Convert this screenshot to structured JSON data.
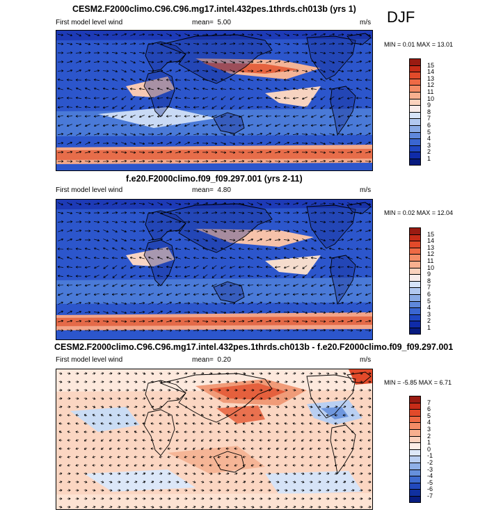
{
  "season": "DJF",
  "panels": [
    {
      "title": "CESM2.F2000climo.C96.C96.mg17.intel.432pes.1thrds.ch013b (yrs 1)",
      "left_label": "First model level wind",
      "mean_label": "mean=",
      "mean_value": "5.00",
      "units": "m/s",
      "min_max": "MIN =  0.01 MAX = 13.01",
      "colorbar_ticks": [
        "15",
        "14",
        "13",
        "12",
        "11",
        "10",
        "9",
        "8",
        "7",
        "6",
        "5",
        "4",
        "3",
        "2",
        "1"
      ],
      "colorbar_colors": [
        "#9a1b12",
        "#c72c18",
        "#e24a2a",
        "#ee6a45",
        "#f48c66",
        "#f8b08f",
        "#fbd2bd",
        "#f8ecea",
        "#d7e4f8",
        "#b2c9f0",
        "#8aabe6",
        "#5f88db",
        "#3a66d1",
        "#2047c2",
        "#0f2ba9",
        "#081b80"
      ]
    },
    {
      "title": "f.e20.F2000climo.f09_f09.297.001 (yrs 2-11)",
      "left_label": "First model level wind",
      "mean_label": "mean=",
      "mean_value": "4.80",
      "units": "m/s",
      "min_max": "MIN =  0.02 MAX = 12.04",
      "colorbar_ticks": [
        "15",
        "14",
        "13",
        "12",
        "11",
        "10",
        "9",
        "8",
        "7",
        "6",
        "5",
        "4",
        "3",
        "2",
        "1"
      ],
      "colorbar_colors": [
        "#9a1b12",
        "#c72c18",
        "#e24a2a",
        "#ee6a45",
        "#f48c66",
        "#f8b08f",
        "#fbd2bd",
        "#f8ecea",
        "#d7e4f8",
        "#b2c9f0",
        "#8aabe6",
        "#5f88db",
        "#3a66d1",
        "#2047c2",
        "#0f2ba9",
        "#081b80"
      ]
    },
    {
      "title": "CESM2.F2000climo.C96.C96.mg17.intel.432pes.1thrds.ch013b - f.e20.F2000climo.f09_f09.297.001",
      "left_label": "First model level wind",
      "mean_label": "mean=",
      "mean_value": "0.20",
      "units": "m/s",
      "min_max": "MIN = -5.85 MAX =  6.71",
      "colorbar_ticks": [
        "7",
        "6",
        "5",
        "4",
        "3",
        "2",
        "1",
        "0",
        "-1",
        "-2",
        "-3",
        "-4",
        "-5",
        "-6",
        "-7"
      ],
      "colorbar_colors": [
        "#9a1b12",
        "#c72c18",
        "#e24a2a",
        "#ee6a45",
        "#f48c66",
        "#f8b08f",
        "#fbd2bd",
        "#fdeee6",
        "#dde8f8",
        "#b9cff2",
        "#8fb0e7",
        "#6690dc",
        "#3e6bd0",
        "#2249bd",
        "#10309f",
        "#081d80"
      ]
    }
  ],
  "chart_data": [
    {
      "type": "heatmap",
      "title": "CESM2.F2000climo.C96.C96.mg17.intel.432pes.1thrds.ch013b (yrs 1)",
      "variable": "First model level wind",
      "units": "m/s",
      "mean": 5.0,
      "min": 0.01,
      "max": 13.01,
      "colorbar_levels": [
        1,
        2,
        3,
        4,
        5,
        6,
        7,
        8,
        9,
        10,
        11,
        12,
        13,
        14,
        15
      ]
    },
    {
      "type": "heatmap",
      "title": "f.e20.F2000climo.f09_f09.297.001 (yrs 2-11)",
      "variable": "First model level wind",
      "units": "m/s",
      "mean": 4.8,
      "min": 0.02,
      "max": 12.04,
      "colorbar_levels": [
        1,
        2,
        3,
        4,
        5,
        6,
        7,
        8,
        9,
        10,
        11,
        12,
        13,
        14,
        15
      ]
    },
    {
      "type": "heatmap",
      "title": "CESM2.F2000climo.C96.C96.mg17.intel.432pes.1thrds.ch013b - f.e20.F2000climo.f09_f09.297.001",
      "variable": "First model level wind",
      "units": "m/s",
      "mean": 0.2,
      "min": -5.85,
      "max": 6.71,
      "colorbar_levels": [
        -7,
        -6,
        -5,
        -4,
        -3,
        -2,
        -1,
        0,
        1,
        2,
        3,
        4,
        5,
        6,
        7
      ]
    }
  ]
}
